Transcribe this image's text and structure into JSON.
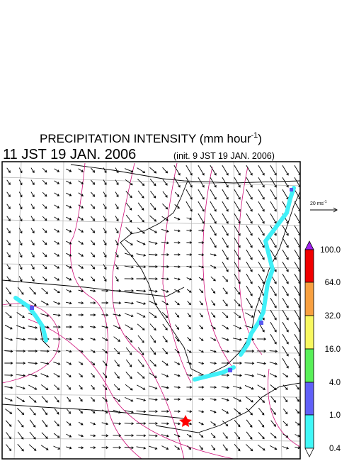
{
  "header": {
    "title": "PRECIPITATION INTENSITY (mm hour",
    "title_superscript": "-1",
    "title_close": ")",
    "time": "11 JST 19 JAN. 2006",
    "init": "(init. 9 JST 19 JAN. 2006)"
  },
  "wind_scale": {
    "label": "20 ms",
    "superscript": "-1"
  },
  "colorbar": {
    "labels": [
      "100.0",
      "64.0",
      "32.0",
      "16.0",
      "4.0",
      "1.0",
      "0.4"
    ]
  }
}
